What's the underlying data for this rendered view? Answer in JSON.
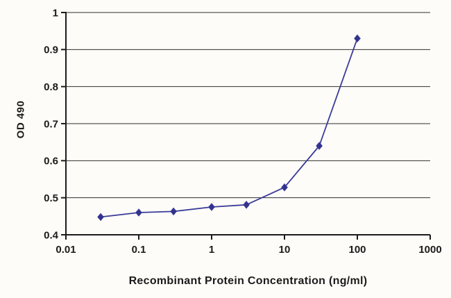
{
  "chart_data": {
    "type": "line",
    "title": "",
    "xlabel": "Recombinant Protein Concentration (ng/ml)",
    "ylabel": "OD 490",
    "x_scale": "log",
    "xlim": [
      0.01,
      1000
    ],
    "ylim": [
      0.4,
      1.0
    ],
    "x_ticks": [
      0.01,
      0.1,
      1,
      10,
      100,
      1000
    ],
    "x_tick_labels": [
      "0.01",
      "0.1",
      "1",
      "10",
      "100",
      "1000"
    ],
    "y_ticks": [
      0.4,
      0.5,
      0.6,
      0.7,
      0.8,
      0.9,
      1
    ],
    "y_tick_labels": [
      "0.4",
      "0.5",
      "0.6",
      "0.7",
      "0.8",
      "0.9",
      "1"
    ],
    "grid": "horizontal",
    "legend": "none",
    "series": [
      {
        "name": "OD 490",
        "marker": "diamond",
        "color": "#3a3a99",
        "marker_color": "#33338a",
        "x": [
          0.03,
          0.1,
          0.3,
          1,
          3,
          10,
          30,
          100
        ],
        "y": [
          0.448,
          0.46,
          0.463,
          0.475,
          0.481,
          0.528,
          0.64,
          0.93
        ]
      }
    ]
  },
  "colors": {
    "background": "#fdfcf8",
    "axis": "#1b1b1b",
    "grid": "#2e2e2e",
    "text": "#1b1b1b"
  }
}
